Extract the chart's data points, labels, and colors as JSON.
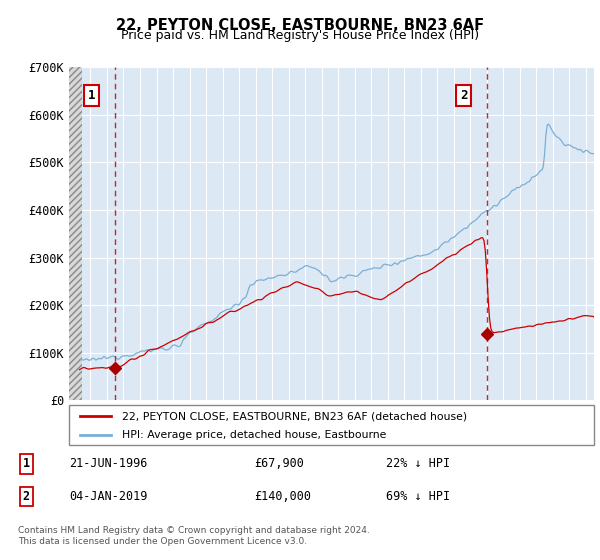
{
  "title": "22, PEYTON CLOSE, EASTBOURNE, BN23 6AF",
  "subtitle": "Price paid vs. HM Land Registry's House Price Index (HPI)",
  "ylim": [
    0,
    700000
  ],
  "yticks": [
    0,
    100000,
    200000,
    300000,
    400000,
    500000,
    600000,
    700000
  ],
  "ytick_labels": [
    "£0",
    "£100K",
    "£200K",
    "£300K",
    "£400K",
    "£500K",
    "£600K",
    "£700K"
  ],
  "plot_bg": "#dce9f5",
  "sale1_price": 67900,
  "sale1_year": 1996.47,
  "sale2_price": 140000,
  "sale2_year": 2019.01,
  "red_line_color": "#cc0000",
  "blue_line_color": "#7bafd4",
  "vline_color": "#cc0000",
  "marker_color": "#aa0000",
  "legend_line1": "22, PEYTON CLOSE, EASTBOURNE, BN23 6AF (detached house)",
  "legend_line2": "HPI: Average price, detached house, Eastbourne",
  "table_row1": [
    "1",
    "21-JUN-1996",
    "£67,900",
    "22% ↓ HPI"
  ],
  "table_row2": [
    "2",
    "04-JAN-2019",
    "£140,000",
    "69% ↓ HPI"
  ],
  "footnote": "Contains HM Land Registry data © Crown copyright and database right 2024.\nThis data is licensed under the Open Government Licence v3.0.",
  "xmin": 1993.7,
  "xmax": 2025.5
}
